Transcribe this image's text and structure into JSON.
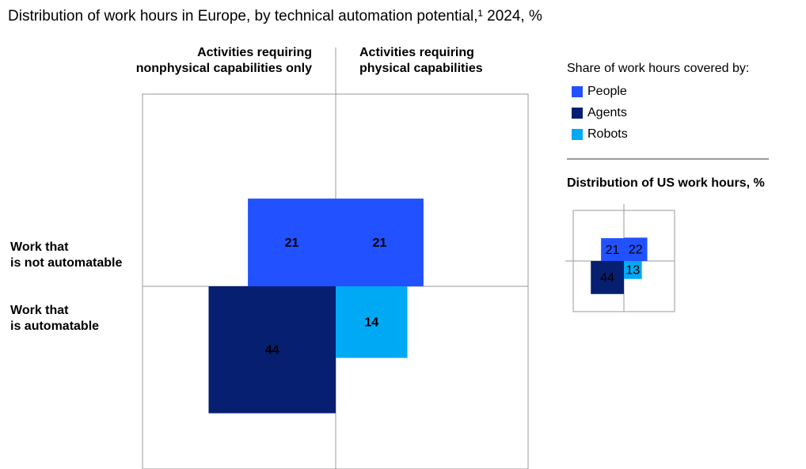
{
  "title": "Distribution of work hours in Europe, by technical automation potential,¹ 2024, %",
  "chart_data": [
    {
      "type": "quadrant",
      "col_labels": [
        [
          "Activities requiring",
          "nonphysical capabilities only"
        ],
        [
          "Activities requiring",
          "physical capabilities"
        ]
      ],
      "row_labels": [
        [
          "Work that",
          "is not automatable"
        ],
        [
          "Work that",
          "is automatable"
        ]
      ],
      "legend_title": "Share of work hours covered by:",
      "series": [
        {
          "name": "People",
          "color": "#2251ff",
          "values": [
            [
              21,
              21
            ],
            [
              null,
              null
            ]
          ]
        },
        {
          "name": "Agents",
          "color": "#071f70",
          "values": [
            [
              null,
              null
            ],
            [
              44,
              null
            ]
          ]
        },
        {
          "name": "Robots",
          "color": "#00a9f4",
          "values": [
            [
              null,
              null
            ],
            [
              null,
              14
            ]
          ]
        }
      ]
    },
    {
      "type": "quadrant",
      "title": "Distribution of US work hours, %",
      "series": [
        {
          "color": "#2251ff",
          "values": [
            [
              21,
              22
            ],
            [
              null,
              null
            ]
          ]
        },
        {
          "color": "#071f70",
          "values": [
            [
              null,
              null
            ],
            [
              44,
              null
            ]
          ]
        },
        {
          "color": "#00a9f4",
          "values": [
            [
              null,
              null
            ],
            [
              null,
              13
            ]
          ]
        }
      ]
    }
  ]
}
